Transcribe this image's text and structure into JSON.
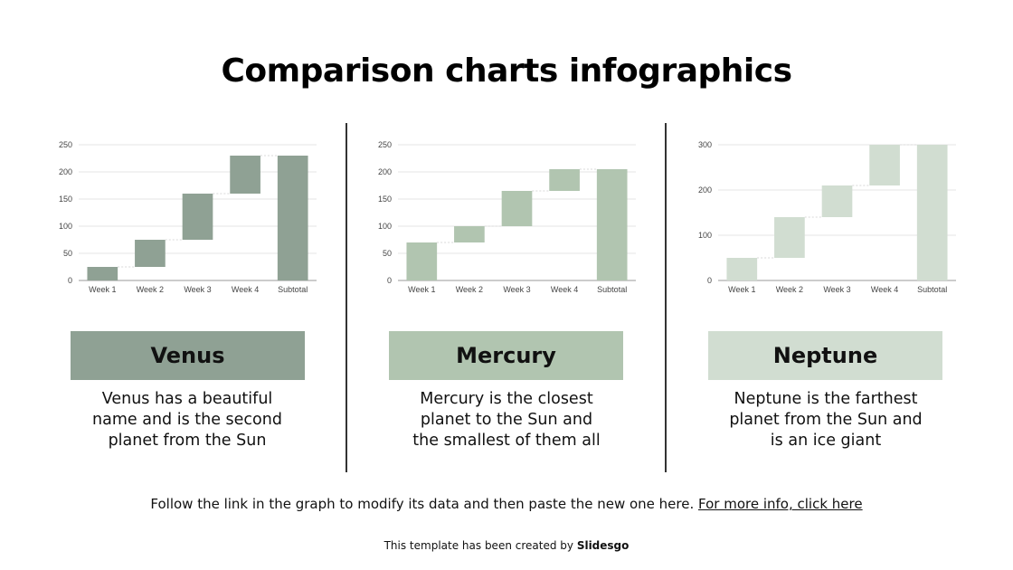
{
  "title": "Comparison charts infographics",
  "colors": {
    "venus": "#8fa194",
    "mercury": "#b1c5b0",
    "neptune": "#d1ddd1",
    "gridline": "#e4e4e4",
    "axis": "#9a9a9a",
    "divider": "#333333"
  },
  "panels": [
    {
      "name": "Venus",
      "description_lines": [
        "Venus has a beautiful",
        "name and is the second",
        "planet from the Sun"
      ]
    },
    {
      "name": "Mercury",
      "description_lines": [
        "Mercury is the closest",
        "planet to the Sun and",
        "the smallest of them all"
      ]
    },
    {
      "name": "Neptune",
      "description_lines": [
        "Neptune is the farthest",
        "planet from the Sun and",
        "is an ice giant"
      ]
    }
  ],
  "chart_data": [
    {
      "type": "bar",
      "subtype": "waterfall",
      "categories": [
        "Week 1",
        "Week 2",
        "Week 3",
        "Week 4",
        "Subtotal"
      ],
      "ranges": [
        [
          0,
          25
        ],
        [
          25,
          75
        ],
        [
          75,
          160
        ],
        [
          160,
          230
        ],
        [
          0,
          230
        ]
      ],
      "yticks": [
        0,
        50,
        100,
        150,
        200,
        250
      ],
      "ylim": [
        0,
        250
      ],
      "grid": true
    },
    {
      "type": "bar",
      "subtype": "waterfall",
      "categories": [
        "Week 1",
        "Week 2",
        "Week 3",
        "Week 4",
        "Subtotal"
      ],
      "ranges": [
        [
          0,
          70
        ],
        [
          70,
          100
        ],
        [
          100,
          165
        ],
        [
          165,
          205
        ],
        [
          0,
          205
        ]
      ],
      "yticks": [
        0,
        50,
        100,
        150,
        200,
        250
      ],
      "ylim": [
        0,
        250
      ],
      "grid": true
    },
    {
      "type": "bar",
      "subtype": "waterfall",
      "categories": [
        "Week 1",
        "Week 2",
        "Week 3",
        "Week 4",
        "Subtotal"
      ],
      "ranges": [
        [
          0,
          50
        ],
        [
          50,
          140
        ],
        [
          140,
          210
        ],
        [
          210,
          300
        ],
        [
          0,
          300
        ]
      ],
      "yticks": [
        0,
        100,
        200,
        300
      ],
      "ylim": [
        0,
        300
      ],
      "grid": true
    }
  ],
  "footer": {
    "text": "Follow the link in the graph to modify its data and then paste the new one here. ",
    "link": "For more info, click here"
  },
  "credit": {
    "prefix": "This template has been created by ",
    "brand": "Slidesgo"
  }
}
